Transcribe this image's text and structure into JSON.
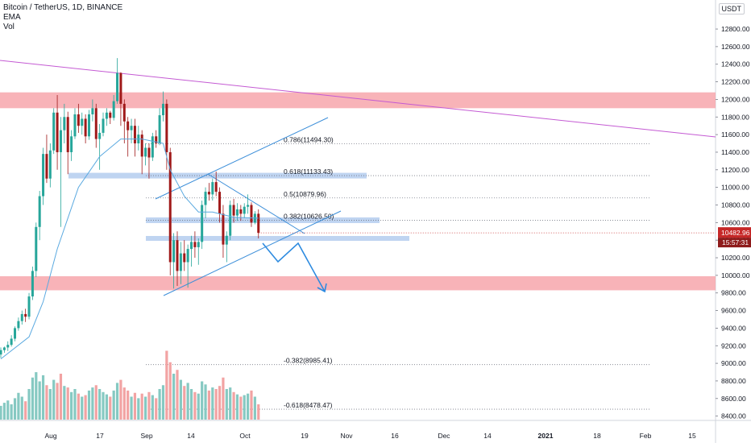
{
  "chart_data": {
    "type": "candlestick",
    "title": "Bitcoin / TetherUS, 1D, BINANCE",
    "legend_items": [
      "EMA",
      "Vol"
    ],
    "currency_badge": "USDT",
    "y_axis": {
      "ylim": [
        8360,
        13130
      ],
      "ticks": [
        8400,
        8600,
        8800,
        9000,
        9200,
        9400,
        9600,
        9800,
        10000,
        10200,
        10400,
        10600,
        10800,
        11000,
        11200,
        11400,
        11600,
        11800,
        12000,
        12200,
        12400,
        12600,
        12800
      ],
      "tick_labels": [
        "8400.00",
        "8600.00",
        "8800.00",
        "9000.00",
        "9200.00",
        "9400.00",
        "9600.00",
        "9800.00",
        "10000.00",
        "10200.00",
        "10400.00",
        "10600.00",
        "10800.00",
        "11000.00",
        "11200.00",
        "11400.00",
        "11600.00",
        "11800.00",
        "12000.00",
        "12200.00",
        "12400.00",
        "12600.00",
        "12800.00"
      ],
      "top_partial_label": "1"
    },
    "x_axis": {
      "tick_labels": [
        "Aug",
        "17",
        "Sep",
        "14",
        "Oct",
        "19",
        "Nov",
        "16",
        "Dec",
        "14",
        "2021",
        "18",
        "Feb",
        "15"
      ]
    },
    "price_label": "10482.96",
    "countdown_label": "15:57:31",
    "candles": [
      [
        9100,
        9180,
        9060,
        9150
      ],
      [
        9150,
        9190,
        9120,
        9180
      ],
      [
        9180,
        9250,
        9140,
        9210
      ],
      [
        9210,
        9320,
        9190,
        9280
      ],
      [
        9280,
        9420,
        9250,
        9400
      ],
      [
        9400,
        9520,
        9370,
        9480
      ],
      [
        9480,
        9600,
        9440,
        9560
      ],
      [
        9560,
        9620,
        9470,
        9530
      ],
      [
        9530,
        9800,
        9500,
        9760
      ],
      [
        9760,
        10100,
        9720,
        10050
      ],
      [
        10050,
        10600,
        9980,
        10550
      ],
      [
        10550,
        10960,
        10400,
        10900
      ],
      [
        10900,
        11450,
        10800,
        11380
      ],
      [
        11380,
        11600,
        11050,
        11100
      ],
      [
        11100,
        11500,
        11000,
        11420
      ],
      [
        11420,
        11900,
        11380,
        11850
      ],
      [
        11850,
        12050,
        11200,
        11400
      ],
      [
        11400,
        11800,
        10550,
        11650
      ],
      [
        11650,
        11950,
        11500,
        11800
      ],
      [
        11800,
        11860,
        11150,
        11400
      ],
      [
        11400,
        11650,
        11300,
        11580
      ],
      [
        11580,
        11900,
        11550,
        11830
      ],
      [
        11830,
        11950,
        11620,
        11700
      ],
      [
        11700,
        11850,
        11600,
        11780
      ],
      [
        11780,
        11830,
        11500,
        11580
      ],
      [
        11580,
        11880,
        11540,
        11830
      ],
      [
        11830,
        12000,
        11750,
        11900
      ],
      [
        11900,
        11950,
        11450,
        11550
      ],
      [
        11550,
        11720,
        11200,
        11620
      ],
      [
        11620,
        11850,
        11580,
        11780
      ],
      [
        11780,
        11900,
        11700,
        11850
      ],
      [
        11850,
        11870,
        11720,
        11790
      ],
      [
        11790,
        12050,
        11760,
        11980
      ],
      [
        11980,
        12470,
        11950,
        12300
      ],
      [
        12300,
        12310,
        11700,
        11950
      ],
      [
        11950,
        12000,
        11500,
        11750
      ],
      [
        11750,
        11800,
        11350,
        11650
      ],
      [
        11650,
        11780,
        11500,
        11700
      ],
      [
        11700,
        11780,
        11350,
        11500
      ],
      [
        11500,
        11700,
        11420,
        11600
      ],
      [
        11600,
        11650,
        11150,
        11350
      ],
      [
        11350,
        11500,
        11250,
        11450
      ],
      [
        11450,
        11500,
        11100,
        11340
      ],
      [
        11340,
        11620,
        11300,
        11580
      ],
      [
        11580,
        11650,
        11450,
        11500
      ],
      [
        11500,
        11900,
        11480,
        11820
      ],
      [
        11820,
        12090,
        11750,
        11950
      ],
      [
        11950,
        12000,
        11200,
        11400
      ],
      [
        11400,
        11450,
        10000,
        10150
      ],
      [
        10150,
        10480,
        9850,
        10400
      ],
      [
        10400,
        10500,
        9880,
        10050
      ],
      [
        10050,
        10380,
        9900,
        10250
      ],
      [
        10250,
        10400,
        10050,
        10150
      ],
      [
        10150,
        10350,
        9860,
        10300
      ],
      [
        10300,
        10450,
        10100,
        10380
      ],
      [
        10380,
        10500,
        10200,
        10320
      ],
      [
        10320,
        10420,
        10120,
        10380
      ],
      [
        10380,
        10850,
        10300,
        10800
      ],
      [
        10800,
        11000,
        10650,
        10950
      ],
      [
        10950,
        11050,
        10850,
        10920
      ],
      [
        10920,
        11100,
        10850,
        11060
      ],
      [
        11060,
        11180,
        10900,
        10950
      ],
      [
        10950,
        11000,
        10600,
        10700
      ],
      [
        10700,
        10800,
        10200,
        10350
      ],
      [
        10350,
        10500,
        10150,
        10450
      ],
      [
        10450,
        10850,
        10400,
        10800
      ],
      [
        10800,
        10870,
        10600,
        10680
      ],
      [
        10680,
        10820,
        10620,
        10750
      ],
      [
        10750,
        10800,
        10620,
        10700
      ],
      [
        10700,
        10820,
        10650,
        10780
      ],
      [
        10780,
        10920,
        10700,
        10800
      ],
      [
        10800,
        10830,
        10550,
        10600
      ],
      [
        10600,
        10730,
        10580,
        10700
      ],
      [
        10700,
        10750,
        10420,
        10482.96
      ]
    ],
    "volumes": [
      [
        18,
        1
      ],
      [
        22,
        1
      ],
      [
        25,
        1
      ],
      [
        20,
        1
      ],
      [
        28,
        1
      ],
      [
        35,
        1
      ],
      [
        30,
        1
      ],
      [
        24,
        0
      ],
      [
        40,
        1
      ],
      [
        55,
        1
      ],
      [
        62,
        1
      ],
      [
        50,
        1
      ],
      [
        58,
        1
      ],
      [
        45,
        0
      ],
      [
        40,
        1
      ],
      [
        52,
        1
      ],
      [
        48,
        0
      ],
      [
        60,
        0
      ],
      [
        44,
        1
      ],
      [
        42,
        0
      ],
      [
        36,
        1
      ],
      [
        40,
        1
      ],
      [
        34,
        0
      ],
      [
        30,
        1
      ],
      [
        32,
        0
      ],
      [
        38,
        1
      ],
      [
        42,
        1
      ],
      [
        45,
        0
      ],
      [
        40,
        1
      ],
      [
        36,
        1
      ],
      [
        33,
        1
      ],
      [
        30,
        0
      ],
      [
        38,
        1
      ],
      [
        48,
        1
      ],
      [
        52,
        0
      ],
      [
        42,
        0
      ],
      [
        38,
        0
      ],
      [
        30,
        1
      ],
      [
        35,
        0
      ],
      [
        28,
        1
      ],
      [
        34,
        0
      ],
      [
        30,
        1
      ],
      [
        36,
        0
      ],
      [
        32,
        1
      ],
      [
        28,
        0
      ],
      [
        40,
        1
      ],
      [
        45,
        1
      ],
      [
        90,
        0
      ],
      [
        75,
        0
      ],
      [
        60,
        1
      ],
      [
        65,
        0
      ],
      [
        52,
        1
      ],
      [
        44,
        0
      ],
      [
        48,
        1
      ],
      [
        40,
        1
      ],
      [
        36,
        0
      ],
      [
        34,
        1
      ],
      [
        50,
        1
      ],
      [
        46,
        1
      ],
      [
        38,
        0
      ],
      [
        42,
        1
      ],
      [
        40,
        0
      ],
      [
        44,
        0
      ],
      [
        55,
        0
      ],
      [
        40,
        1
      ],
      [
        42,
        1
      ],
      [
        36,
        0
      ],
      [
        33,
        1
      ],
      [
        30,
        0
      ],
      [
        32,
        1
      ],
      [
        34,
        1
      ],
      [
        38,
        0
      ],
      [
        30,
        1
      ],
      [
        20,
        0
      ]
    ],
    "ema": [
      [
        0,
        9050
      ],
      [
        8,
        9300
      ],
      [
        12,
        9700
      ],
      [
        16,
        10300
      ],
      [
        22,
        11000
      ],
      [
        28,
        11350
      ],
      [
        34,
        11550
      ],
      [
        40,
        11550
      ],
      [
        46,
        11500
      ],
      [
        48,
        11200
      ],
      [
        52,
        10900
      ],
      [
        56,
        10720
      ],
      [
        60,
        10720
      ],
      [
        66,
        10660
      ],
      [
        73,
        10650
      ]
    ],
    "annotations": {
      "horizontal_zones": [
        {
          "name": "resistance-zone",
          "y0": 11900,
          "y1": 12080,
          "color": "#f7a6ab"
        },
        {
          "name": "support-zone",
          "y0": 9830,
          "y1": 9990,
          "color": "#f7a6ab"
        }
      ],
      "fib_levels": [
        {
          "label": "0.786(11494.30)",
          "value": 11494.3
        },
        {
          "label": "0.618(11133.43)",
          "value": 11133.43
        },
        {
          "label": "0.5(10879.96)",
          "value": 10879.96
        },
        {
          "label": "0.382(10626.50)",
          "value": 10626.5
        },
        {
          "label": "-0.382(8985.41)",
          "value": 8985.41
        },
        {
          "label": "-0.618(8478.47)",
          "value": 8478.47
        }
      ],
      "blue_zones": [
        11133.43,
        10626.5,
        10420
      ],
      "trend_line_color": "#c45ad3",
      "channel_color": "#3d8fd9",
      "projection_color": "#2e8be0"
    },
    "colors": {
      "up": "#26a69a",
      "down": "#ef5350",
      "candle_up": "#26a69a",
      "candle_down": "#a01919",
      "vol_up": "#86c9c2",
      "vol_down": "#f2a3a3",
      "ema": "#5aa9e0",
      "price_tag": "#c62828"
    }
  }
}
